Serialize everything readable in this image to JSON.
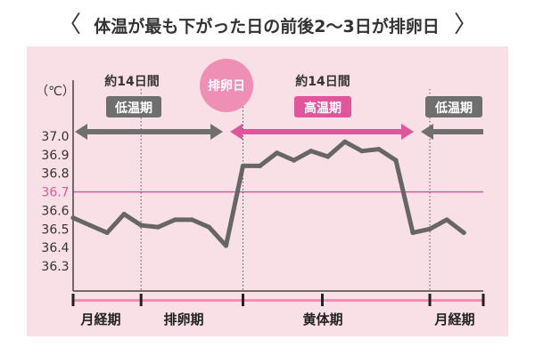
{
  "header": {
    "title": "体温が最も下がった日の前後2〜3日が排卵日",
    "prev_icon": "chevron-left-icon",
    "next_icon": "chevron-right-icon"
  },
  "colors": {
    "panel_bg": "#f9dfe6",
    "line": "#666666",
    "pink_accent": "#e0569c",
    "gray_label": "#6f6f6f",
    "grid_dot": "#555555",
    "ovulation_circle": "#ef8fb5",
    "timeline_pink": "#ef8fb5"
  },
  "chart_data": {
    "type": "line",
    "ylabel": "（℃）",
    "ylim": [
      36.3,
      37.0
    ],
    "y_ticks": [
      "37.0",
      "36.9",
      "36.8",
      "36.7",
      "36.6",
      "36.5",
      "36.4",
      "36.3"
    ],
    "highlight_line": {
      "value": 36.7,
      "label": "36.7"
    },
    "x": [
      0,
      1,
      2,
      3,
      4,
      5,
      6,
      7,
      8,
      9,
      10,
      11,
      12,
      13,
      14,
      15,
      16,
      17,
      18,
      19,
      20,
      21,
      22,
      23,
      24
    ],
    "series": [
      {
        "values": [
          36.56,
          36.52,
          36.48,
          36.58,
          36.52,
          36.51,
          36.55,
          36.55,
          36.51,
          36.41,
          36.84,
          36.84,
          36.91,
          36.87,
          36.92,
          36.89,
          36.97,
          36.92,
          36.93,
          36.87,
          36.48,
          36.5,
          36.55,
          36.48,
          null
        ]
      }
    ],
    "phase_markers": [
      4,
      10,
      21
    ],
    "phases": [
      {
        "label": "月経期"
      },
      {
        "label": "排卵期"
      },
      {
        "label": "黄体期"
      },
      {
        "label": "月経期"
      }
    ],
    "annotations": {
      "low_temp_left": {
        "period": "約14日間",
        "label": "低温期"
      },
      "ovulation": {
        "label": "排卵日"
      },
      "high_temp": {
        "period": "約14日間",
        "label": "高温期"
      },
      "low_temp_right": {
        "label": "低温期"
      }
    }
  }
}
